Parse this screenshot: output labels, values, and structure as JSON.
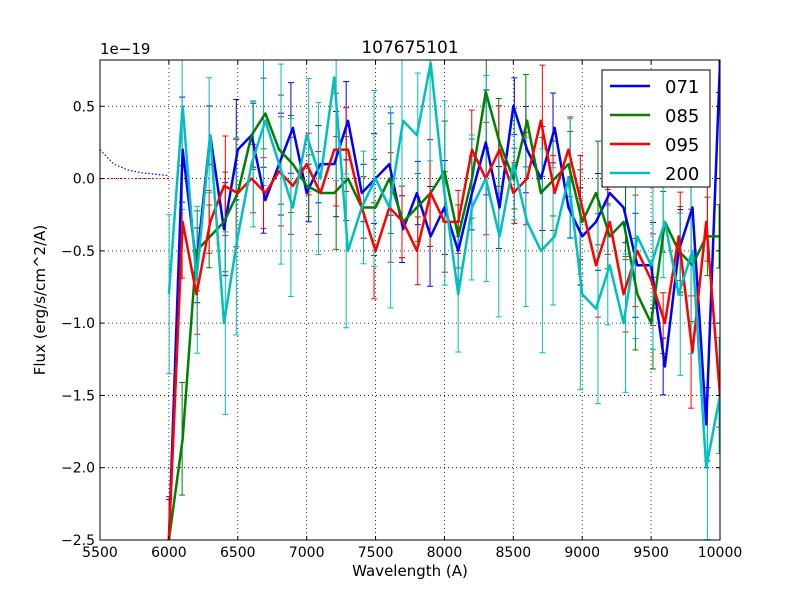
{
  "chart_data": {
    "type": "line",
    "title": "107675101",
    "xlabel": "Wavelength (A)",
    "ylabel": "Flux (erg/s/cm^2/A)",
    "offset_label": "1e−19",
    "xlim": [
      5500,
      10000
    ],
    "ylim": [
      -2.5,
      0.82
    ],
    "xticks": [
      5500,
      6000,
      6500,
      7000,
      7500,
      8000,
      8500,
      9000,
      9500,
      10000
    ],
    "yticks": [
      -2.5,
      -2.0,
      -1.5,
      -1.0,
      -0.5,
      0.0,
      0.5
    ],
    "ytick_labels": [
      "−2.5",
      "−2.0",
      "−1.5",
      "−1.0",
      "−0.5",
      "0.0",
      "0.5"
    ],
    "grid": true,
    "legend_position": "top-right",
    "x": [
      6000,
      6100,
      6200,
      6300,
      6400,
      6500,
      6600,
      6700,
      6800,
      6900,
      7000,
      7100,
      7200,
      7300,
      7400,
      7500,
      7600,
      7700,
      7800,
      7900,
      8000,
      8100,
      8200,
      8300,
      8400,
      8500,
      8600,
      8700,
      8800,
      8900,
      9000,
      9100,
      9200,
      9300,
      9400,
      9500,
      9600,
      9700,
      9800,
      9900,
      10000
    ],
    "series": [
      {
        "name": "071",
        "color": "#0000ff",
        "yerr": 0.28,
        "values": [
          -2.5,
          0.2,
          -0.6,
          0.3,
          -0.35,
          0.2,
          0.3,
          -0.15,
          0.1,
          0.35,
          -0.1,
          0.1,
          0.1,
          0.4,
          -0.1,
          0.0,
          0.1,
          -0.35,
          -0.1,
          -0.4,
          -0.2,
          -0.5,
          -0.1,
          0.25,
          -0.2,
          0.5,
          0.2,
          0.0,
          0.35,
          -0.2,
          -0.4,
          -0.3,
          -0.1,
          -0.2,
          -0.6,
          -0.6,
          -1.3,
          -0.5,
          -0.2,
          -1.7,
          0.8
        ]
      },
      {
        "name": "085",
        "color": "#008000",
        "yerr": 0.3,
        "values": [
          -2.5,
          -1.8,
          -0.5,
          -0.4,
          -0.3,
          -0.1,
          0.3,
          0.45,
          0.2,
          0.1,
          -0.05,
          -0.1,
          -0.1,
          0.0,
          -0.2,
          -0.2,
          0.0,
          -0.3,
          -0.2,
          -0.1,
          0.05,
          -0.4,
          0.0,
          0.6,
          0.25,
          0.0,
          0.4,
          -0.1,
          0.0,
          0.1,
          -0.3,
          -0.1,
          -0.4,
          -0.3,
          -0.8,
          -1.0,
          -0.3,
          -0.5,
          -0.6,
          -0.4,
          -0.4
        ]
      },
      {
        "name": "095",
        "color": "#ff0000",
        "yerr": 0.3,
        "values": [
          -2.5,
          -0.3,
          -0.8,
          -0.3,
          -0.05,
          -0.1,
          0.0,
          -0.1,
          0.05,
          -0.05,
          0.1,
          -0.1,
          0.2,
          0.2,
          -0.2,
          -0.5,
          -0.2,
          -0.3,
          -0.5,
          -0.1,
          -0.3,
          -0.3,
          0.2,
          0.0,
          0.2,
          -0.1,
          0.0,
          0.4,
          -0.1,
          0.2,
          -0.2,
          -0.6,
          -0.3,
          -0.8,
          -0.5,
          -0.7,
          -1.0,
          -0.4,
          -1.2,
          -0.3,
          -1.5
        ]
      },
      {
        "name": "200",
        "color": "#00bfbf",
        "yerr": 0.55,
        "values": [
          -0.8,
          0.5,
          -0.7,
          0.3,
          -1.0,
          -0.4,
          0.1,
          0.4,
          0.1,
          -0.2,
          0.3,
          0.0,
          0.7,
          -0.5,
          -0.2,
          0.0,
          -0.2,
          0.4,
          0.3,
          0.8,
          -0.1,
          -0.8,
          -0.2,
          0.0,
          -0.4,
          0.1,
          -0.3,
          -0.5,
          -0.4,
          0.0,
          -0.8,
          -0.9,
          -0.6,
          -1.0,
          -0.4,
          -0.6,
          -0.3,
          -0.8,
          -0.5,
          -2.0,
          -1.5
        ]
      }
    ],
    "extrapolated": [
      {
        "name": "071-dotted",
        "color": "#0000ff",
        "x": [
          5500,
          5600,
          5700,
          5800,
          5900,
          6000
        ],
        "values": [
          0.2,
          0.1,
          0.06,
          0.04,
          0.03,
          0.02
        ]
      },
      {
        "name": "095-dotted",
        "color": "#ff0000",
        "x": [
          5500,
          6000
        ],
        "values": [
          0.0,
          0.0
        ]
      }
    ]
  }
}
